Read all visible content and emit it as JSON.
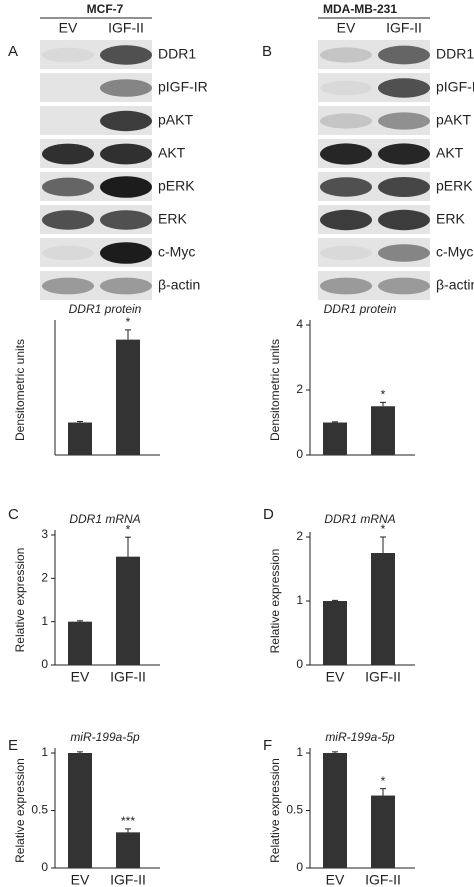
{
  "blots": [
    {
      "panel": "A",
      "cell_line": "MCF-7",
      "lanes": [
        "EV",
        "IGF-II"
      ],
      "bands": [
        "DDR1",
        "pIGF-IR",
        "pAKT",
        "AKT",
        "pERK",
        "ERK",
        "c-Myc",
        "β-actin"
      ]
    },
    {
      "panel": "B",
      "cell_line": "MDA-MB-231",
      "lanes": [
        "EV",
        "IGF-II"
      ],
      "bands": [
        "DDR1",
        "pIGF-IR",
        "pAKT",
        "AKT",
        "pERK",
        "ERK",
        "c-Myc",
        "β-actin"
      ]
    }
  ],
  "chart_data": [
    {
      "type": "bar",
      "title": "DDR1 protein",
      "y_label": "Densitometric units",
      "categories": [
        null,
        null
      ],
      "values": [
        1,
        3.55
      ],
      "errors": [
        0.03,
        0.3
      ],
      "annotations": [
        null,
        "*"
      ],
      "color": "#333333",
      "ylim": [
        0,
        4
      ]
    },
    {
      "type": "bar",
      "title": "DDR1 protein",
      "y_label": "Densitometric units",
      "categories": [
        null,
        null
      ],
      "values": [
        1,
        1.5
      ],
      "errors": [
        0.02,
        0.12
      ],
      "annotations": [
        null,
        "*"
      ],
      "color": "#333333",
      "ylim": [
        0,
        4
      ],
      "yticks": [
        0,
        2,
        4
      ]
    },
    {
      "type": "bar",
      "panel": "C",
      "title": "DDR1 mRNA",
      "y_label": "Relative expression",
      "categories": [
        "EV",
        "IGF-II"
      ],
      "values": [
        1,
        2.5
      ],
      "errors": [
        0.02,
        0.45
      ],
      "annotations": [
        null,
        "*"
      ],
      "color": "#333333",
      "ylim": [
        0,
        3
      ],
      "yticks": [
        0,
        1,
        2,
        3
      ]
    },
    {
      "type": "bar",
      "panel": "D",
      "title": "DDR1 mRNA",
      "y_label": "Relative expression",
      "categories": [
        "EV",
        "IGF-II"
      ],
      "values": [
        1,
        1.75
      ],
      "errors": [
        0.01,
        0.25
      ],
      "annotations": [
        null,
        "*"
      ],
      "color": "#333333",
      "ylim": [
        0,
        2
      ],
      "yticks": [
        0,
        1,
        2
      ]
    },
    {
      "type": "bar",
      "panel": "E",
      "title": "miR-199a-5p",
      "y_label": "Relative expression",
      "categories": [
        "EV",
        "IGF-II"
      ],
      "values": [
        1,
        0.31
      ],
      "errors": [
        0.01,
        0.03
      ],
      "annotations": [
        null,
        "***"
      ],
      "color": "#333333",
      "ylim": [
        0,
        1
      ],
      "yticks": [
        0,
        0.5,
        1
      ]
    },
    {
      "type": "bar",
      "panel": "F",
      "title": "miR-199a-5p",
      "y_label": "Relative expression",
      "categories": [
        "EV",
        "IGF-II"
      ],
      "values": [
        1,
        0.63
      ],
      "errors": [
        0.01,
        0.06
      ],
      "annotations": [
        null,
        "*"
      ],
      "color": "#333333",
      "ylim": [
        0,
        1
      ],
      "yticks": [
        0,
        0.5,
        1
      ]
    }
  ]
}
